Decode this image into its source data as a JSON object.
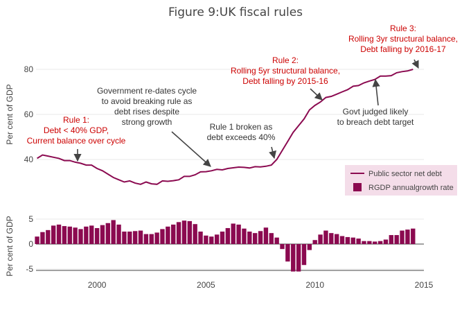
{
  "title": "Figure 9:UK fiscal rules",
  "colors": {
    "series": "#8b0a50",
    "rule_text": "#cc0000",
    "note_text": "#333333",
    "legend_bg": "#f4dde9",
    "grid": "#e8e8e8",
    "zero_line": "#444444"
  },
  "chart_data": [
    {
      "type": "line",
      "title": "",
      "ylabel": "Per cent of GDP",
      "xlim": [
        1997.2,
        2015.0
      ],
      "ylim": [
        26,
        90
      ],
      "yticks": [
        40,
        60,
        80
      ],
      "grid": true,
      "series": [
        {
          "name": "Public sector net debt",
          "x": [
            1997.25,
            1997.5,
            1997.75,
            1998.0,
            1998.25,
            1998.5,
            1998.75,
            1999.0,
            1999.25,
            1999.5,
            1999.75,
            2000.0,
            2000.25,
            2000.5,
            2000.75,
            2001.0,
            2001.25,
            2001.5,
            2001.75,
            2002.0,
            2002.25,
            2002.5,
            2002.75,
            2003.0,
            2003.25,
            2003.5,
            2003.75,
            2004.0,
            2004.25,
            2004.5,
            2004.75,
            2005.0,
            2005.25,
            2005.5,
            2005.75,
            2006.0,
            2006.25,
            2006.5,
            2006.75,
            2007.0,
            2007.25,
            2007.5,
            2007.75,
            2008.0,
            2008.25,
            2008.5,
            2008.75,
            2009.0,
            2009.25,
            2009.5,
            2009.75,
            2010.0,
            2010.25,
            2010.5,
            2010.75,
            2011.0,
            2011.25,
            2011.5,
            2011.75,
            2012.0,
            2012.25,
            2012.5,
            2012.75,
            2013.0,
            2013.25,
            2013.5,
            2013.75,
            2014.0,
            2014.25,
            2014.5
          ],
          "y": [
            40.5,
            42.0,
            41.5,
            41.0,
            40.5,
            39.5,
            39.5,
            38.8,
            38.3,
            37.5,
            37.5,
            36.0,
            35.0,
            33.5,
            32.0,
            31.0,
            30.0,
            30.5,
            29.5,
            29.0,
            30.0,
            29.2,
            29.0,
            30.5,
            30.3,
            30.6,
            31.0,
            32.5,
            32.5,
            33.2,
            34.5,
            34.6,
            35.0,
            35.6,
            35.4,
            36.0,
            36.3,
            36.6,
            36.5,
            36.2,
            36.8,
            36.7,
            37.0,
            37.5,
            40.0,
            44.0,
            48.0,
            52.0,
            55.0,
            58.0,
            62.0,
            64.0,
            65.5,
            67.5,
            68.0,
            69.0,
            70.0,
            71.0,
            72.5,
            72.8,
            74.0,
            74.8,
            75.5,
            77.0,
            77.0,
            77.2,
            78.5,
            79.0,
            79.3,
            80.0
          ]
        }
      ]
    },
    {
      "type": "bar",
      "title": "",
      "ylabel": "Per cent of GDP",
      "xlim": [
        1997.2,
        2015.0
      ],
      "ylim": [
        -6.5,
        6.5
      ],
      "yticks": [
        -5,
        0,
        5
      ],
      "xticks": [
        2000,
        2005,
        2010,
        2015
      ],
      "series": [
        {
          "name": "RGDP annualgrowth rate",
          "x": [
            1997.25,
            1997.5,
            1997.75,
            1998.0,
            1998.25,
            1998.5,
            1998.75,
            1999.0,
            1999.25,
            1999.5,
            1999.75,
            2000.0,
            2000.25,
            2000.5,
            2000.75,
            2001.0,
            2001.25,
            2001.5,
            2001.75,
            2002.0,
            2002.25,
            2002.5,
            2002.75,
            2003.0,
            2003.25,
            2003.5,
            2003.75,
            2004.0,
            2004.25,
            2004.5,
            2004.75,
            2005.0,
            2005.25,
            2005.5,
            2005.75,
            2006.0,
            2006.25,
            2006.5,
            2006.75,
            2007.0,
            2007.25,
            2007.5,
            2007.75,
            2008.0,
            2008.25,
            2008.5,
            2008.75,
            2009.0,
            2009.25,
            2009.5,
            2009.75,
            2010.0,
            2010.25,
            2010.5,
            2010.75,
            2011.0,
            2011.25,
            2011.5,
            2011.75,
            2012.0,
            2012.25,
            2012.5,
            2012.75,
            2013.0,
            2013.25,
            2013.5,
            2013.75,
            2014.0,
            2014.25,
            2014.5
          ],
          "values": [
            1.5,
            2.4,
            2.8,
            3.7,
            3.9,
            3.6,
            3.5,
            3.3,
            3.0,
            3.5,
            3.7,
            3.2,
            3.8,
            4.2,
            4.8,
            3.9,
            2.5,
            2.5,
            2.6,
            2.7,
            2.0,
            2.0,
            2.3,
            3.0,
            3.5,
            3.9,
            4.4,
            4.7,
            4.6,
            4.0,
            2.5,
            1.7,
            1.5,
            1.9,
            2.5,
            3.2,
            4.1,
            3.9,
            3.1,
            2.5,
            2.2,
            2.6,
            3.3,
            2.2,
            1.3,
            -1.0,
            -3.5,
            -5.5,
            -5.5,
            -4.2,
            -1.2,
            0.8,
            1.9,
            2.7,
            2.2,
            2.0,
            1.6,
            1.4,
            1.3,
            1.1,
            0.6,
            0.6,
            0.5,
            0.6,
            0.9,
            1.8,
            1.8,
            2.7,
            2.9,
            3.1
          ]
        }
      ]
    }
  ],
  "annotations": [
    {
      "id": "rule1",
      "kind": "rule",
      "lines": [
        "Rule 1:",
        "Debt < 40% GDP,",
        "Current balance over cycle"
      ],
      "x": 1999.0,
      "y": 39.0
    },
    {
      "id": "redate",
      "kind": "note",
      "lines": [
        "Government re-dates cycle",
        "to avoid breaking rule as",
        "debt rises despite",
        "strong growth"
      ],
      "x": 2005.25,
      "y": 35.0
    },
    {
      "id": "rule1broken",
      "kind": "note",
      "lines": [
        "Rule 1 broken as",
        "debt exceeds 40%"
      ],
      "x": 2008.5,
      "y": 41.0
    },
    {
      "id": "rule2",
      "kind": "rule",
      "lines": [
        "Rule 2:",
        "Rolling 5yr structural balance,",
        "Debt falling by 2015-16"
      ],
      "x": 2010.5,
      "y": 65.5
    },
    {
      "id": "govtjudged",
      "kind": "note",
      "lines": [
        "Govt judged likely",
        "to breach debt target"
      ],
      "x": 2012.75,
      "y": 75.5
    },
    {
      "id": "rule3",
      "kind": "rule",
      "lines": [
        "Rule 3:",
        "Rolling 3yr structural balance,",
        "Debt falling by 2016-17"
      ],
      "x": 2014.5,
      "y": 80.0
    }
  ],
  "legend": [
    {
      "label": "Public sector net debt",
      "marker": "line"
    },
    {
      "label": "RGDP annualgrowth rate",
      "marker": "square"
    }
  ]
}
